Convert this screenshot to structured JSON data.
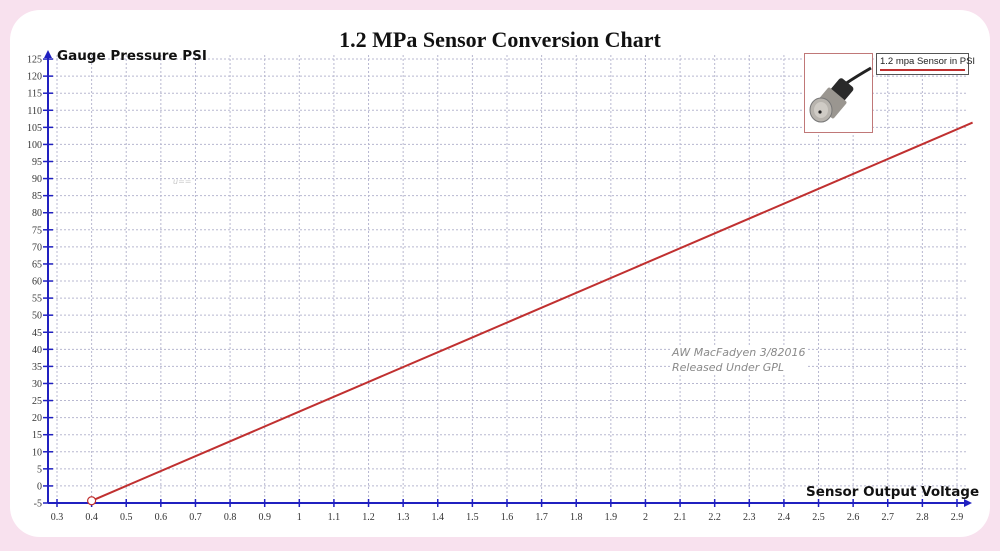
{
  "page": {
    "background_color": "#f8e1ee",
    "card_color": "#ffffff"
  },
  "chart": {
    "title": "1.2 MPa Sensor Conversion Chart",
    "ylabel": "Gauge Pressure PSI",
    "xlabel": "Sensor Output Voltage",
    "legend_label": "1.2 mpa  Sensor in PSI",
    "credit_line1": "AW MacFadyen 3/82016",
    "credit_line2": "Released Under GPL",
    "faint_mark": "u==",
    "axis_color": "#2020c0",
    "line_color": "#c03030",
    "grid_color": "#b8b8d0"
  },
  "chart_data": {
    "type": "line",
    "title": "1.2 MPa Sensor Conversion Chart",
    "xlabel": "Sensor Output Voltage",
    "ylabel": "Gauge Pressure PSI",
    "xlim": [
      0.3,
      2.95
    ],
    "ylim": [
      -5,
      125
    ],
    "x_ticks": [
      "0.3",
      "0.4",
      "0.5",
      "0.6",
      "0.7",
      "0.8",
      "0.9",
      "1",
      "1.1",
      "1.2",
      "1.3",
      "1.4",
      "1.5",
      "1.6",
      "1.7",
      "1.8",
      "1.9",
      "2",
      "2.1",
      "2.2",
      "2.3",
      "2.4",
      "2.5",
      "2.6",
      "2.7",
      "2.8",
      "2.9"
    ],
    "y_ticks": [
      "-5",
      "0",
      "5",
      "10",
      "15",
      "20",
      "25",
      "30",
      "35",
      "40",
      "45",
      "50",
      "55",
      "60",
      "65",
      "70",
      "75",
      "80",
      "85",
      "90",
      "95",
      "100",
      "105",
      "110",
      "115",
      "120",
      "125"
    ],
    "grid": true,
    "legend_position": "top-right",
    "series": [
      {
        "name": "1.2 mpa  Sensor in PSI",
        "x": [
          0.4,
          0.5,
          1.0,
          1.5,
          2.0,
          2.5,
          2.945
        ],
        "y": [
          -4.35,
          0,
          21.75,
          43.5,
          65.25,
          87.0,
          106.4
        ]
      }
    ],
    "annotations": [
      "AW MacFadyen 3/82016",
      "Released Under GPL"
    ]
  }
}
